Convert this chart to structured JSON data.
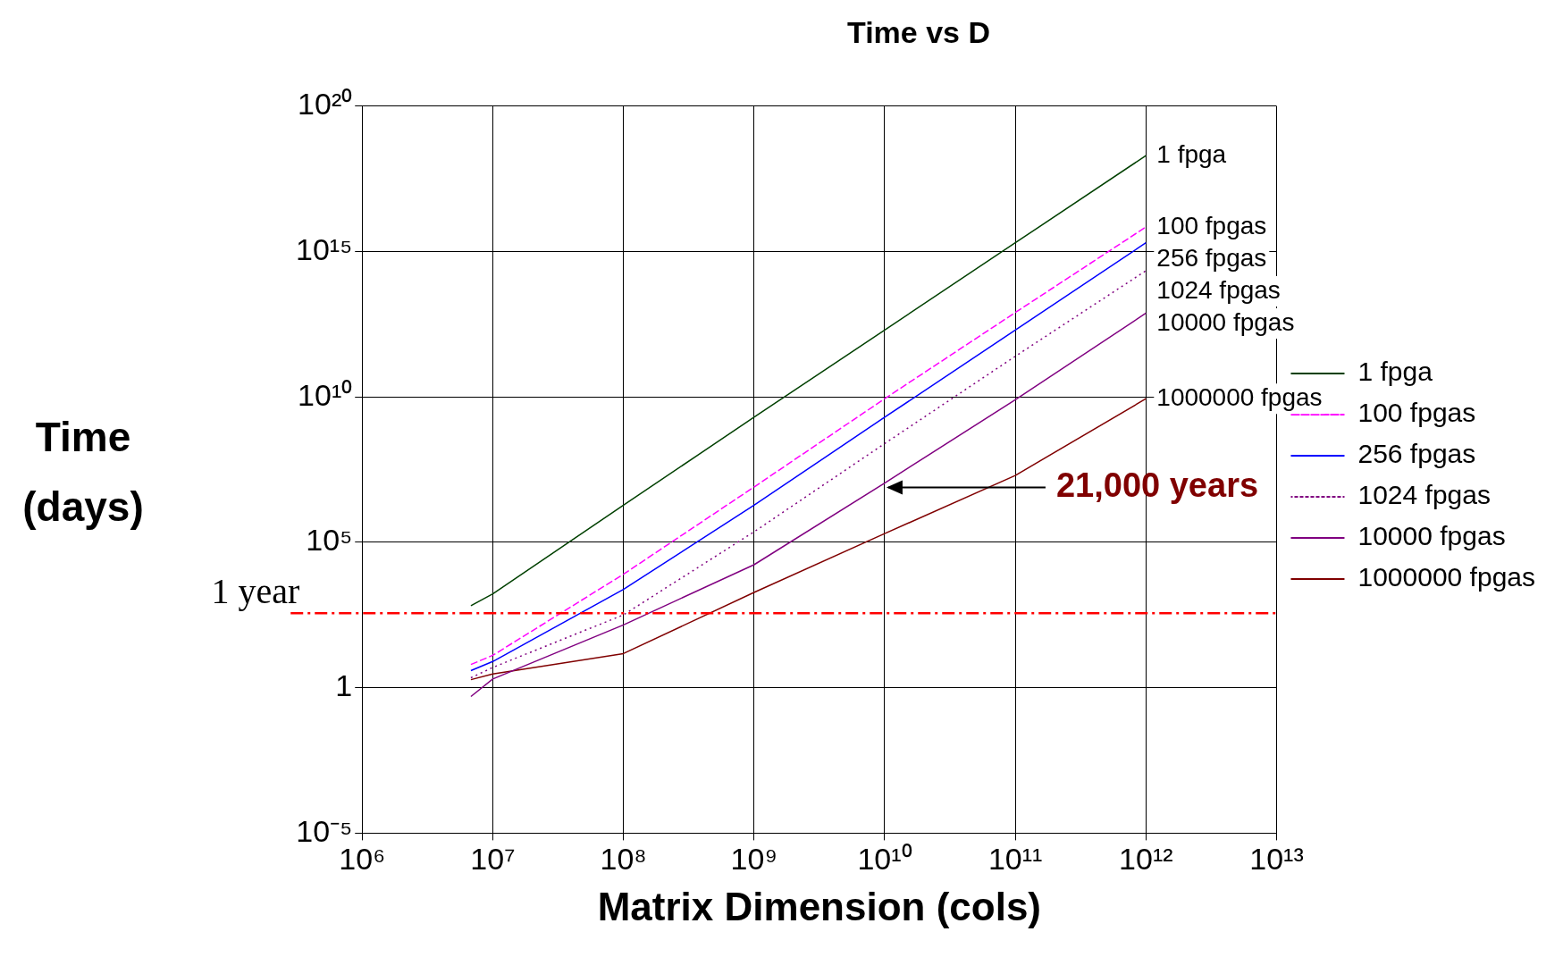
{
  "chart_data": {
    "type": "line",
    "title": "Time vs D",
    "xlabel": "Matrix Dimension (cols)",
    "ylabel": "Time (days)",
    "log": "xy",
    "grid": true,
    "legend": "right",
    "marker": "none",
    "xlim": [
      1000000,
      10000000000000
    ],
    "ylim": [
      1e-05,
      100000000000000000000
    ],
    "xticks": [
      {
        "value": 1000000,
        "label": "10⁶"
      },
      {
        "value": 10000000,
        "label": "10⁷"
      },
      {
        "value": 100000000,
        "label": "10⁸"
      },
      {
        "value": 1000000000,
        "label": "10⁹"
      },
      {
        "value": 10000000000,
        "label": "10¹⁰"
      },
      {
        "value": 100000000000,
        "label": "10¹¹"
      },
      {
        "value": 1000000000000,
        "label": "10¹²"
      },
      {
        "value": 10000000000000,
        "label": "10¹³"
      }
    ],
    "yticks": [
      {
        "value": 1e-05,
        "label": "10⁻⁵"
      },
      1,
      {
        "value": 100000,
        "label": "10⁵"
      },
      {
        "value": 10000000000,
        "label": "10¹⁰"
      },
      {
        "value": 1000000000000000,
        "label": "10¹⁵"
      },
      {
        "value": 100000000000000000000,
        "label": "10²⁰"
      }
    ],
    "x": [
      6800000,
      10000000,
      100000000,
      1000000000,
      10000000000,
      100000000000,
      1000000000000
    ],
    "series": [
      {
        "name": "1 fpga",
        "color": "#004000",
        "line_style": "solid",
        "values": [
          660,
          1700,
          1900000,
          2000000000,
          2000000000000,
          2000000000000000,
          2000000000000000000
        ]
      },
      {
        "name": "100 fpgas",
        "color": "#ff00ff",
        "line_style": "dashed",
        "values": [
          6.3,
          13,
          8000,
          8000000,
          8700000000,
          8000000000000,
          7000000000000000
        ]
      },
      {
        "name": "256 fpgas",
        "color": "#0000ff",
        "line_style": "solid",
        "values": [
          3.9,
          8,
          2400,
          1900000,
          2000000000,
          2000000000000,
          2000000000000000
        ]
      },
      {
        "name": "1024 fpgas",
        "color": "#800080",
        "line_style": "dotted",
        "values": [
          2.2,
          5,
          320,
          230000,
          250000000,
          250000000000,
          220000000000000
        ]
      },
      {
        "name": "10000 fpgas",
        "color": "#800080",
        "line_style": "solid",
        "values": [
          0.5,
          2,
          145,
          17000,
          11000000,
          8000000000,
          7600000000000
        ]
      },
      {
        "name": "1000000 fpgas",
        "color": "#800000",
        "line_style": "solid",
        "values": [
          1.9,
          3,
          15,
          1900,
          200000,
          20000000,
          8700000000
        ]
      }
    ],
    "ref_lines": [
      {
        "axis": "y",
        "value": 365,
        "label": "1 year",
        "color": "#ff0000",
        "line_style": "dashed"
      }
    ],
    "annotations": [
      {
        "text": "21,000 years",
        "x": 10000000000,
        "y": 7670000
      }
    ]
  }
}
